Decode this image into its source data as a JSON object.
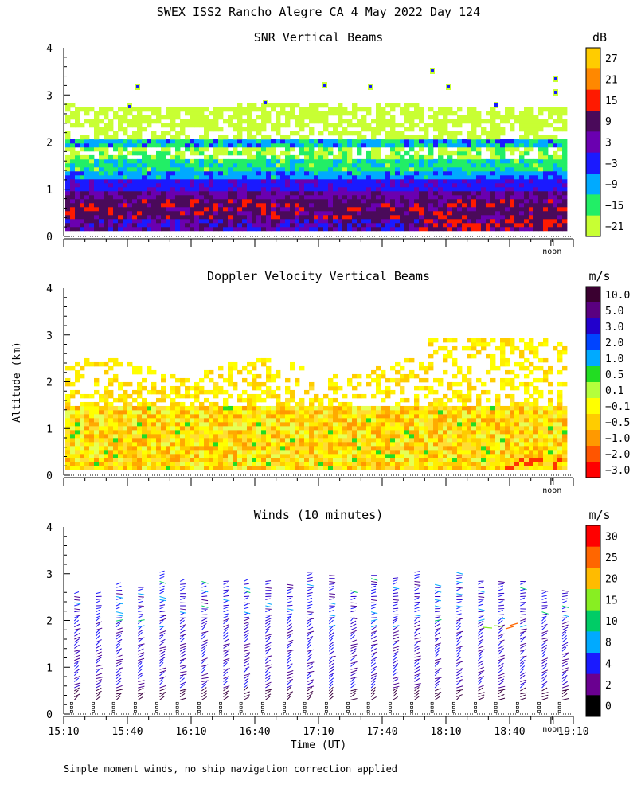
{
  "page": {
    "title": "SWEX ISS2 Rancho Alegre CA   4 May 2022 Day 124",
    "footnote": "Simple moment winds, no ship navigation correction applied"
  },
  "chart_data": [
    {
      "id": "snr",
      "type": "heatmap",
      "title": "SNR Vertical Beams",
      "ylabel": "Altitude (km)",
      "xlabel": "",
      "ylim": [
        0,
        4
      ],
      "xlim_hours_ut": [
        15.1667,
        19.1667
      ],
      "noon_marker": "noon",
      "yticks": [
        "0",
        "1",
        "2",
        "3",
        "4"
      ],
      "colorbar": {
        "unit": "dB",
        "labels": [
          "27",
          "21",
          "15",
          "9",
          "3",
          "−3",
          "−9",
          "−15",
          "−21"
        ],
        "colors": [
          "#ffcc00",
          "#ff8800",
          "#ff1a00",
          "#4a0a5a",
          "#6a00b0",
          "#1a1aff",
          "#00aaff",
          "#22ee66",
          "#c8ff33"
        ]
      }
    },
    {
      "id": "doppler",
      "type": "heatmap",
      "title": "Doppler Velocity Vertical Beams",
      "ylabel": "Altitude (km)",
      "xlabel": "",
      "ylim": [
        0,
        4
      ],
      "xlim_hours_ut": [
        15.1667,
        19.1667
      ],
      "noon_marker": "noon",
      "yticks": [
        "0",
        "1",
        "2",
        "3",
        "4"
      ],
      "colorbar": {
        "unit": "m/s",
        "labels": [
          "10.0",
          "5.0",
          "3.0",
          "2.0",
          "1.0",
          "0.5",
          "0.1",
          "−0.1",
          "−0.5",
          "−1.0",
          "−2.0",
          "−3.0"
        ],
        "colors": [
          "#3a0030",
          "#5a0080",
          "#2200cc",
          "#0044ff",
          "#00aaff",
          "#22dd22",
          "#b4ff3c",
          "#ffff00",
          "#ffcc00",
          "#ff9900",
          "#ff5500",
          "#ff0000"
        ]
      }
    },
    {
      "id": "winds",
      "type": "wind-barbs",
      "title": "Winds (10 minutes)",
      "ylabel": "Altitude (km)",
      "xlabel": "Time (UT)",
      "ylim": [
        0,
        4
      ],
      "xlim_hours_ut": [
        15.1667,
        19.1667
      ],
      "noon_marker": "noon",
      "yticks": [
        "0",
        "1",
        "2",
        "3",
        "4"
      ],
      "xticks": [
        "15:10",
        "15:40",
        "16:10",
        "16:40",
        "17:10",
        "17:40",
        "18:10",
        "18:40",
        "19:10"
      ],
      "profile_times_hours_ut": [
        15.25,
        15.42,
        15.58,
        15.75,
        15.92,
        16.08,
        16.25,
        16.42,
        16.58,
        16.75,
        16.92,
        17.08,
        17.25,
        17.42,
        17.58,
        17.75,
        17.92,
        18.08,
        18.25,
        18.42,
        18.58,
        18.75,
        18.92,
        19.08
      ],
      "colorbar": {
        "unit": "m/s",
        "labels": [
          "30",
          "25",
          "20",
          "15",
          "10",
          "8",
          "4",
          "2",
          "0"
        ],
        "colors": [
          "#ff0000",
          "#ff6600",
          "#ffbb00",
          "#88ee22",
          "#00cc66",
          "#00aaff",
          "#1a1aff",
          "#6a0090",
          "#000000"
        ]
      }
    }
  ]
}
